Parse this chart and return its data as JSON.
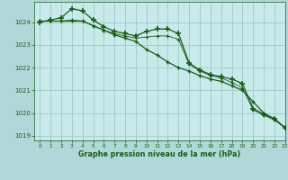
{
  "fig_bg_color": "#b0d8d8",
  "plot_bg_color": "#c8eaea",
  "grid_color": "#88bbbb",
  "line_color": "#1a5c1a",
  "xlabel": "Graphe pression niveau de la mer (hPa)",
  "ylim": [
    1018.8,
    1024.9
  ],
  "xlim": [
    -0.5,
    23
  ],
  "yticks": [
    1019,
    1020,
    1021,
    1022,
    1023,
    1024
  ],
  "xticks": [
    0,
    1,
    2,
    3,
    4,
    5,
    6,
    7,
    8,
    9,
    10,
    11,
    12,
    13,
    14,
    15,
    16,
    17,
    18,
    19,
    20,
    21,
    22,
    23
  ],
  "series": [
    {
      "x": [
        0,
        1,
        2,
        3,
        4,
        5,
        6,
        7,
        8,
        9,
        10,
        11,
        12,
        13,
        14,
        15,
        16,
        17,
        18,
        19,
        20,
        21,
        22,
        23
      ],
      "y": [
        1024.0,
        1024.1,
        1024.2,
        1024.6,
        1024.5,
        1024.1,
        1023.8,
        1023.6,
        1023.5,
        1023.4,
        1023.6,
        1023.7,
        1023.7,
        1023.5,
        1022.2,
        1021.9,
        1021.7,
        1021.6,
        1021.5,
        1021.3,
        1020.2,
        1019.95,
        1019.75,
        1019.35
      ],
      "marker": "+",
      "linestyle": "-",
      "linewidth": 0.9,
      "markersize": 4,
      "markeredgewidth": 1.2
    },
    {
      "x": [
        0,
        1,
        2,
        3,
        4,
        5,
        6,
        7,
        8,
        9,
        10,
        11,
        12,
        13,
        14,
        15,
        16,
        17,
        18,
        19,
        20,
        21,
        22,
        23
      ],
      "y": [
        1024.05,
        1024.05,
        1024.05,
        1024.1,
        1024.05,
        1023.85,
        1023.65,
        1023.5,
        1023.4,
        1023.3,
        1023.35,
        1023.4,
        1023.4,
        1023.25,
        1022.15,
        1021.85,
        1021.65,
        1021.55,
        1021.35,
        1021.1,
        1020.15,
        1019.9,
        1019.7,
        1019.35
      ],
      "marker": "+",
      "linestyle": "-",
      "linewidth": 0.6,
      "markersize": 2.5,
      "markeredgewidth": 0.8
    },
    {
      "x": [
        0,
        1,
        2,
        3,
        4,
        5,
        6,
        7,
        8,
        9,
        10,
        11,
        12,
        13,
        14,
        15,
        16,
        17,
        18,
        19,
        20,
        21,
        22,
        23
      ],
      "y": [
        1024.05,
        1024.05,
        1024.05,
        1024.05,
        1024.05,
        1023.85,
        1023.65,
        1023.45,
        1023.3,
        1023.15,
        1022.8,
        1022.55,
        1022.25,
        1022.0,
        1021.85,
        1021.65,
        1021.5,
        1021.4,
        1021.2,
        1021.0,
        1020.5,
        1020.0,
        1019.75,
        1019.35
      ],
      "marker": "+",
      "linestyle": "-",
      "linewidth": 0.9,
      "markersize": 3.5,
      "markeredgewidth": 1.0
    }
  ]
}
